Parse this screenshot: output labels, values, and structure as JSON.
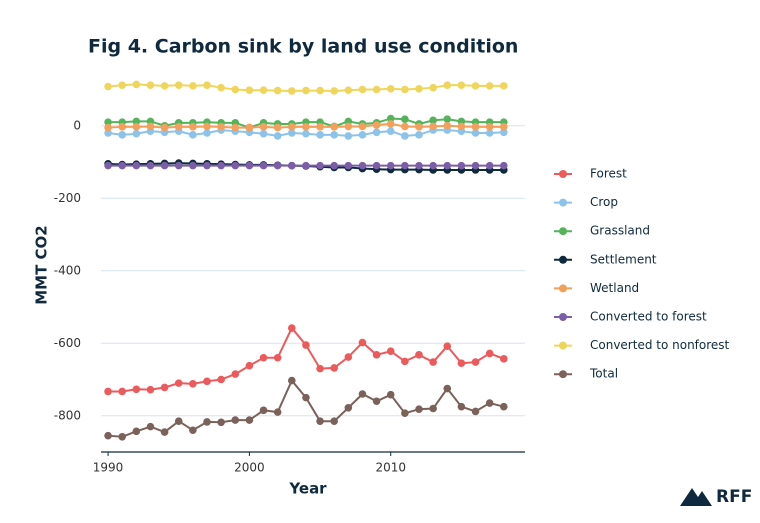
{
  "chart_data": {
    "type": "line",
    "title": "Fig 4. Carbon sink by land use condition",
    "xlabel": "Year",
    "ylabel": "MMT CO2",
    "logo": "RFF",
    "x": [
      1990,
      1991,
      1992,
      1993,
      1994,
      1995,
      1996,
      1997,
      1998,
      1999,
      2000,
      2001,
      2002,
      2003,
      2004,
      2005,
      2006,
      2007,
      2008,
      2009,
      2010,
      2011,
      2012,
      2013,
      2014,
      2015,
      2016,
      2017,
      2018
    ],
    "xlim": [
      1989.5,
      2019.5
    ],
    "xticks": [
      1990,
      2000,
      2010
    ],
    "ylim": [
      -900,
      140
    ],
    "yticks": [
      0,
      -200,
      -400,
      -600,
      -800
    ],
    "grid": true,
    "legend": "right",
    "series": [
      {
        "name": "Forest",
        "color": "#ec5a5c",
        "values": [
          -733,
          -733,
          -727,
          -728,
          -722,
          -710,
          -712,
          -705,
          -700,
          -685,
          -662,
          -640,
          -640,
          -558,
          -605,
          -670,
          -668,
          -638,
          -598,
          -632,
          -622,
          -650,
          -632,
          -652,
          -608,
          -655,
          -652,
          -628,
          -643
        ]
      },
      {
        "name": "Crop",
        "color": "#8cc3ea",
        "values": [
          -20,
          -25,
          -22,
          -15,
          -18,
          -15,
          -25,
          -20,
          -12,
          -15,
          -18,
          -22,
          -28,
          -20,
          -22,
          -25,
          -25,
          -28,
          -25,
          -18,
          -15,
          -28,
          -25,
          -12,
          -12,
          -15,
          -20,
          -20,
          -18
        ]
      },
      {
        "name": "Grassland",
        "color": "#55b35a",
        "values": [
          10,
          10,
          12,
          12,
          0,
          8,
          8,
          10,
          8,
          8,
          -5,
          8,
          5,
          5,
          10,
          10,
          -2,
          12,
          5,
          8,
          20,
          18,
          5,
          15,
          18,
          12,
          10,
          10,
          10
        ]
      },
      {
        "name": "Settlement",
        "color": "#0f2a3f",
        "values": [
          -105,
          -107,
          -106,
          -105,
          -104,
          -103,
          -104,
          -105,
          -106,
          -107,
          -108,
          -108,
          -109,
          -110,
          -111,
          -113,
          -115,
          -115,
          -118,
          -120,
          -121,
          -121,
          -121,
          -122,
          -122,
          -122,
          -122,
          -122,
          -122
        ]
      },
      {
        "name": "Wetland",
        "color": "#f2a05c",
        "values": [
          -5,
          -3,
          -3,
          -2,
          -5,
          -3,
          -3,
          -2,
          -3,
          -5,
          -5,
          -3,
          -5,
          -3,
          -3,
          -3,
          -3,
          -2,
          -2,
          2,
          5,
          -2,
          -3,
          -2,
          0,
          -2,
          -3,
          -3,
          -3
        ]
      },
      {
        "name": "Converted to forest",
        "color": "#7b5ea7",
        "values": [
          -110,
          -110,
          -110,
          -110,
          -110,
          -110,
          -110,
          -110,
          -110,
          -110,
          -110,
          -110,
          -110,
          -110,
          -110,
          -110,
          -110,
          -110,
          -110,
          -110,
          -110,
          -110,
          -110,
          -110,
          -110,
          -110,
          -110,
          -110,
          -110
        ]
      },
      {
        "name": "Converted to nonforest",
        "color": "#efd55c",
        "values": [
          108,
          112,
          114,
          112,
          110,
          112,
          110,
          112,
          105,
          100,
          98,
          98,
          97,
          96,
          97,
          97,
          96,
          98,
          100,
          100,
          102,
          100,
          102,
          105,
          112,
          112,
          110,
          110,
          110
        ]
      },
      {
        "name": "Total",
        "color": "#7a625a",
        "values": [
          -855,
          -858,
          -843,
          -830,
          -845,
          -815,
          -840,
          -817,
          -818,
          -812,
          -812,
          -785,
          -790,
          -703,
          -750,
          -815,
          -815,
          -778,
          -740,
          -760,
          -742,
          -793,
          -782,
          -780,
          -725,
          -775,
          -788,
          -765,
          -775
        ]
      }
    ]
  }
}
